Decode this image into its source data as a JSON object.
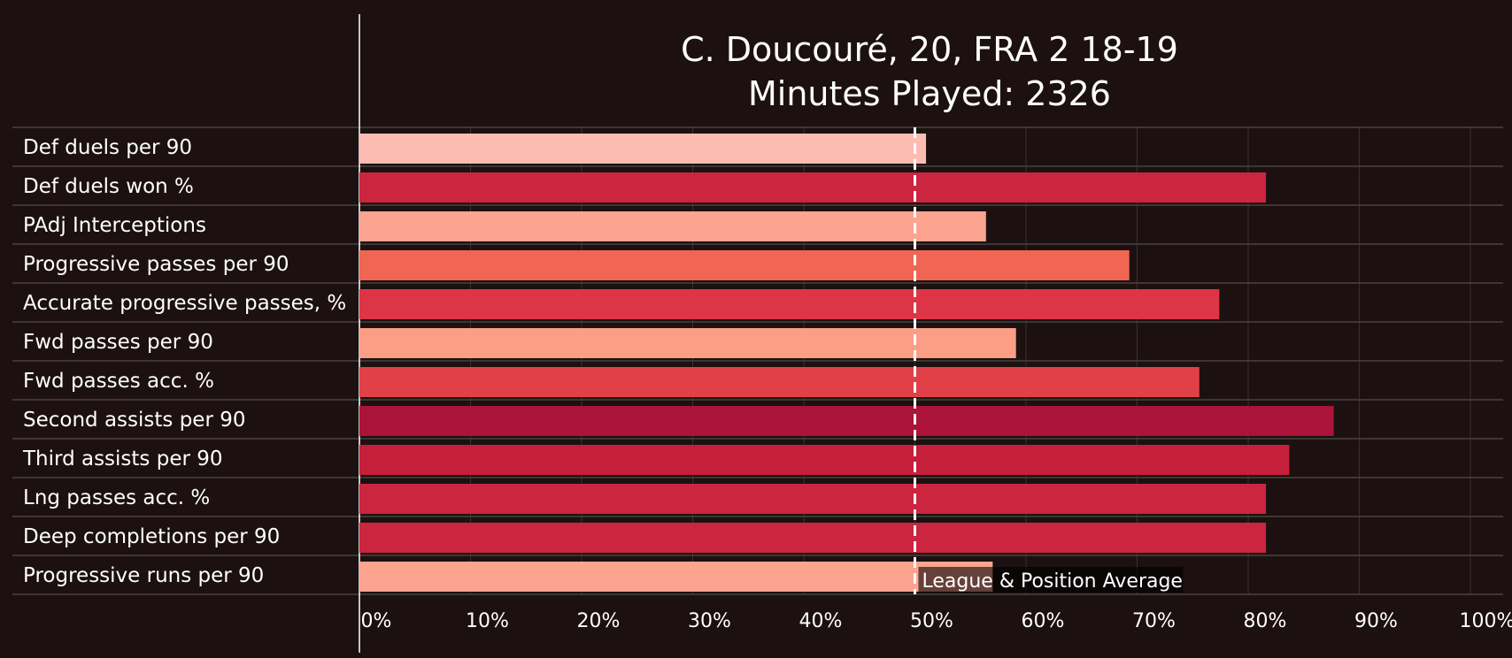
{
  "chart_data": {
    "type": "bar",
    "orientation": "horizontal",
    "title": "C. Doucouré, 20, FRA 2 18-19",
    "subtitle": "Minutes Played: 2326",
    "categories": [
      "Def duels per 90",
      "Def duels won %",
      "PAdj Interceptions",
      "Progressive passes per 90",
      "Accurate progressive passes, %",
      "Fwd passes per 90",
      "Fwd passes acc. %",
      "Second assists per 90",
      "Third assists per 90",
      "Lng passes acc. %",
      "Deep completions per 90",
      "Progressive runs per 90"
    ],
    "values": [
      51,
      81.6,
      56.4,
      69.3,
      77.4,
      59.1,
      75.6,
      87.7,
      83.7,
      81.6,
      81.6,
      57
    ],
    "bar_colors": [
      "#fdbcb2",
      "#cc2540",
      "#fca490",
      "#f06653",
      "#de3546",
      "#fc9e86",
      "#e14049",
      "#ac1338",
      "#c61f3c",
      "#cc2540",
      "#cc2540",
      "#fca490"
    ],
    "xlim": [
      0,
      100
    ],
    "x_ticks": [
      0,
      10,
      20,
      30,
      40,
      50,
      60,
      70,
      80,
      90,
      100
    ],
    "x_tick_labels": [
      "0%",
      "10%",
      "20%",
      "30%",
      "40%",
      "50%",
      "60%",
      "70%",
      "80%",
      "90%",
      "100%"
    ],
    "reference_line": {
      "value": 50,
      "label": "League & Position Average",
      "style": "dashed"
    },
    "grid": true,
    "background": "#1c1110",
    "text_color": "#ffffff"
  }
}
